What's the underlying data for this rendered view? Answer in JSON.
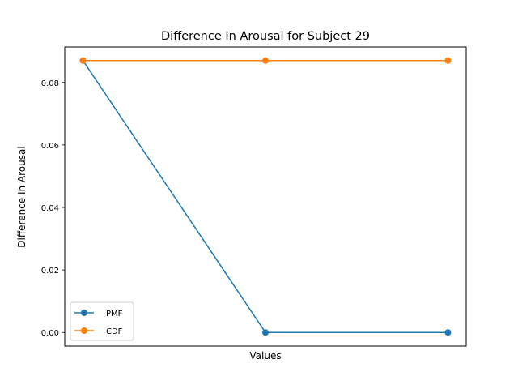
{
  "chart_data": {
    "type": "line",
    "title": "Difference In Arousal for Subject 29",
    "xlabel": "Values",
    "ylabel": "Difference In Arousal",
    "x": [
      0,
      1,
      2
    ],
    "ylim": [
      -0.00435,
      0.09135
    ],
    "xlim": [
      -0.1,
      2.1
    ],
    "yticks": [
      0.0,
      0.02,
      0.04,
      0.06,
      0.08
    ],
    "ytick_labels": [
      "0.00",
      "0.02",
      "0.04",
      "0.06",
      "0.08"
    ],
    "grid": false,
    "legend_position": "lower-left",
    "series": [
      {
        "name": "PMF",
        "color": "#1f77b4",
        "values": [
          0.087,
          0.0,
          0.0
        ]
      },
      {
        "name": "CDF",
        "color": "#ff7f0e",
        "values": [
          0.087,
          0.087,
          0.087
        ]
      }
    ]
  }
}
